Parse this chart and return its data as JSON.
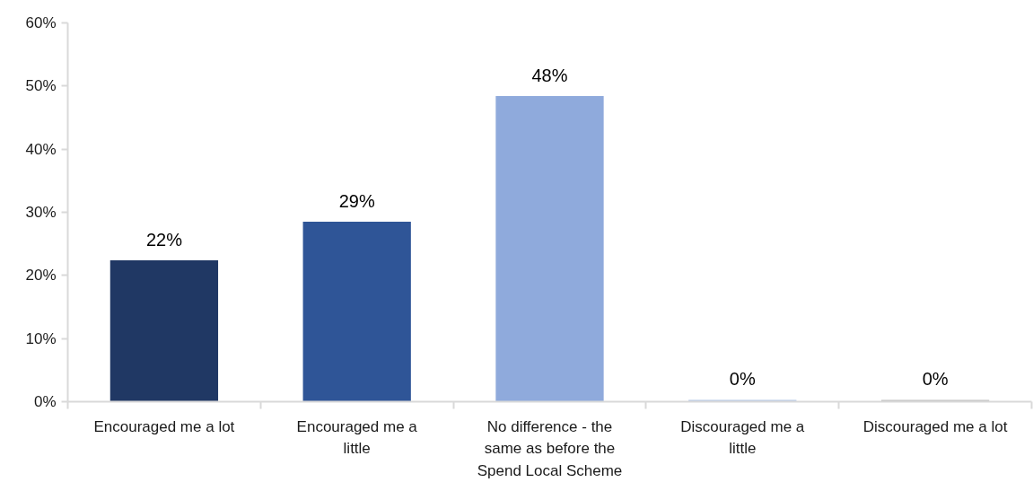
{
  "chart_data": {
    "type": "bar",
    "categories": [
      "Encouraged me a lot",
      "Encouraged me a little",
      "No difference - the same as before the Spend Local Scheme",
      "Discouraged me a little",
      "Discouraged me a lot"
    ],
    "values": [
      22.4,
      28.5,
      48.4,
      0.3,
      0.3
    ],
    "colors": [
      "#203864",
      "#2f5597",
      "#8faadc",
      "#b4c7e7",
      "#bfbfbf"
    ],
    "value_labels": [
      "22%",
      "29%",
      "48%",
      "0%",
      "0%"
    ],
    "ylim": [
      0,
      60
    ],
    "yticks": [
      {
        "value": 0,
        "label": "0%"
      },
      {
        "value": 10,
        "label": "10%"
      },
      {
        "value": 20,
        "label": "20%"
      },
      {
        "value": 30,
        "label": "30%"
      },
      {
        "value": 40,
        "label": "40%"
      },
      {
        "value": 50,
        "label": "50%"
      },
      {
        "value": 60,
        "label": "60%"
      }
    ],
    "grid": false
  }
}
